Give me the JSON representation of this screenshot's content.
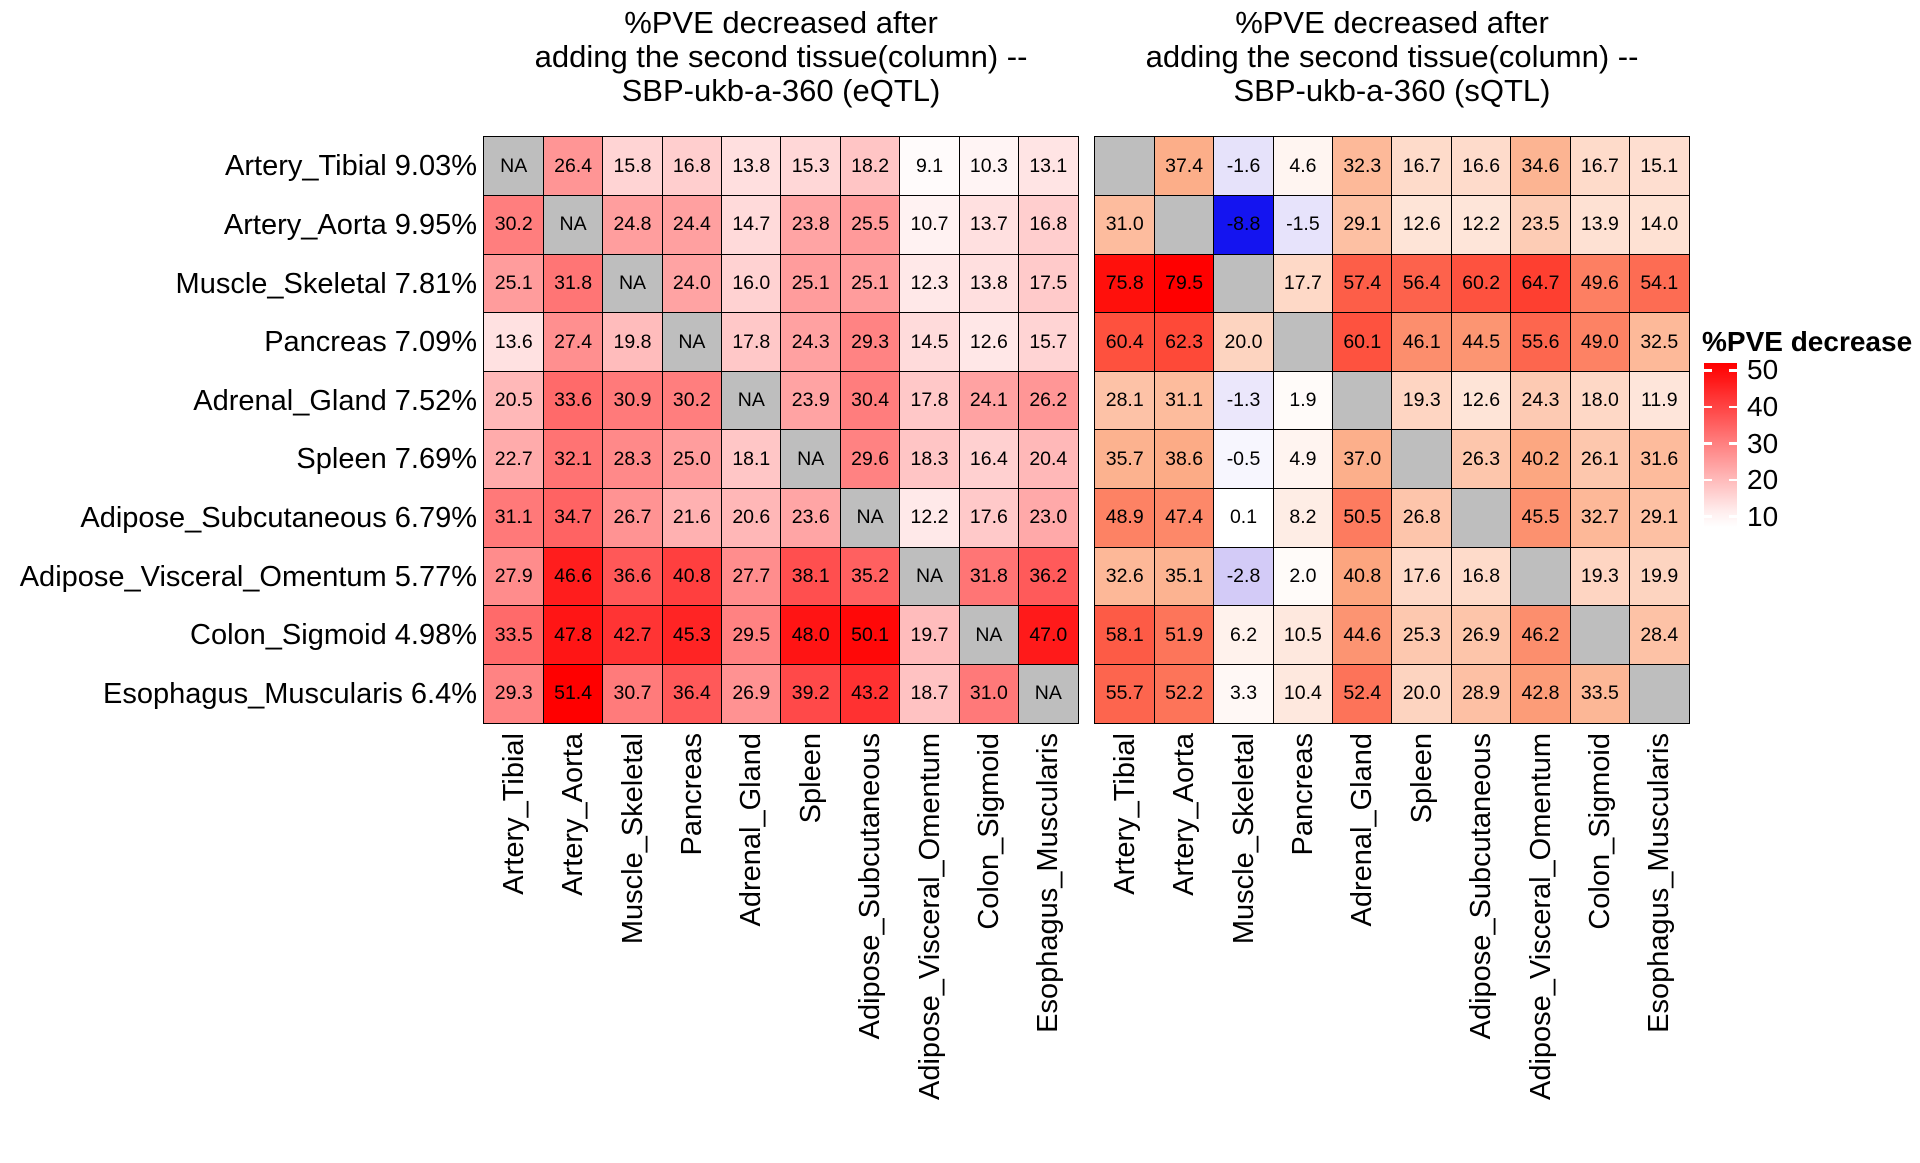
{
  "chart_data": [
    {
      "type": "heatmap",
      "name": "eqtl-heatmap",
      "title": "%PVE decreased after\nadding the second tissue(column) --\nSBP-ukb-a-360 (eQTL)",
      "rows": [
        "Artery_Tibial 9.03%",
        "Artery_Aorta 9.95%",
        "Muscle_Skeletal 7.81%",
        "Pancreas 7.09%",
        "Adrenal_Gland 7.52%",
        "Spleen 7.69%",
        "Adipose_Subcutaneous 6.79%",
        "Adipose_Visceral_Omentum 5.77%",
        "Colon_Sigmoid 4.98%",
        "Esophagus_Muscularis 6.4%"
      ],
      "columns": [
        "Artery_Tibial",
        "Artery_Aorta",
        "Muscle_Skeletal",
        "Pancreas",
        "Adrenal_Gland",
        "Spleen",
        "Adipose_Subcutaneous",
        "Adipose_Visceral_Omentum",
        "Colon_Sigmoid",
        "Esophagus_Muscularis"
      ],
      "na_label": "NA",
      "colormap": "white-red",
      "value_range": [
        9.1,
        51.4
      ],
      "values": [
        [
          null,
          26.4,
          15.8,
          16.8,
          13.8,
          15.3,
          18.2,
          9.1,
          10.3,
          13.1
        ],
        [
          30.2,
          null,
          24.8,
          24.4,
          14.7,
          23.8,
          25.5,
          10.7,
          13.7,
          16.8
        ],
        [
          25.1,
          31.8,
          null,
          24.0,
          16.0,
          25.1,
          25.1,
          12.3,
          13.8,
          17.5
        ],
        [
          13.6,
          27.4,
          19.8,
          null,
          17.8,
          24.3,
          29.3,
          14.5,
          12.6,
          15.7
        ],
        [
          20.5,
          33.6,
          30.9,
          30.2,
          null,
          23.9,
          30.4,
          17.8,
          24.1,
          26.2
        ],
        [
          22.7,
          32.1,
          28.3,
          25.0,
          18.1,
          null,
          29.6,
          18.3,
          16.4,
          20.4
        ],
        [
          31.1,
          34.7,
          26.7,
          21.6,
          20.6,
          23.6,
          null,
          12.2,
          17.6,
          23.0
        ],
        [
          27.9,
          46.6,
          36.6,
          40.8,
          27.7,
          38.1,
          35.2,
          null,
          31.8,
          36.2
        ],
        [
          33.5,
          47.8,
          42.7,
          45.3,
          29.5,
          48.0,
          50.1,
          19.7,
          null,
          47.0
        ],
        [
          29.3,
          51.4,
          30.7,
          36.4,
          26.9,
          39.2,
          43.2,
          18.7,
          31.0,
          null
        ]
      ]
    },
    {
      "type": "heatmap",
      "name": "sqtl-heatmap",
      "title": "%PVE decreased after\nadding the second tissue(column) --\nSBP-ukb-a-360 (sQTL)",
      "rows": [
        "Artery_Tibial 9.03%",
        "Artery_Aorta 9.95%",
        "Muscle_Skeletal 7.81%",
        "Pancreas 7.09%",
        "Adrenal_Gland 7.52%",
        "Spleen 7.69%",
        "Adipose_Subcutaneous 6.79%",
        "Adipose_Visceral_Omentum 5.77%",
        "Colon_Sigmoid 4.98%",
        "Esophagus_Muscularis 6.4%"
      ],
      "columns": [
        "Artery_Tibial",
        "Artery_Aorta",
        "Muscle_Skeletal",
        "Pancreas",
        "Adrenal_Gland",
        "Spleen",
        "Adipose_Subcutaneous",
        "Adipose_Visceral_Omentum",
        "Colon_Sigmoid",
        "Esophagus_Muscularis"
      ],
      "na_label": "",
      "colormap": "blue-white-red",
      "value_range": [
        -8.8,
        79.5
      ],
      "values": [
        [
          null,
          37.4,
          -1.6,
          4.6,
          32.3,
          16.7,
          16.6,
          34.6,
          16.7,
          15.1
        ],
        [
          31.0,
          null,
          -8.8,
          -1.5,
          29.1,
          12.6,
          12.2,
          23.5,
          13.9,
          14.0
        ],
        [
          75.8,
          79.5,
          null,
          17.7,
          57.4,
          56.4,
          60.2,
          64.7,
          49.6,
          54.1
        ],
        [
          60.4,
          62.3,
          20.0,
          null,
          60.1,
          46.1,
          44.5,
          55.6,
          49.0,
          32.5
        ],
        [
          28.1,
          31.1,
          -1.3,
          1.9,
          null,
          19.3,
          12.6,
          24.3,
          18.0,
          11.9
        ],
        [
          35.7,
          38.6,
          -0.5,
          4.9,
          37.0,
          null,
          26.3,
          40.2,
          26.1,
          31.6
        ],
        [
          48.9,
          47.4,
          0.1,
          8.2,
          50.5,
          26.8,
          null,
          45.5,
          32.7,
          29.1
        ],
        [
          32.6,
          35.1,
          -2.8,
          2.0,
          40.8,
          17.6,
          16.8,
          null,
          19.3,
          19.9
        ],
        [
          58.1,
          51.9,
          6.2,
          10.5,
          44.6,
          25.3,
          26.9,
          46.2,
          null,
          28.4
        ],
        [
          55.7,
          52.2,
          3.3,
          10.4,
          52.4,
          20.0,
          28.9,
          42.8,
          33.5,
          null
        ]
      ]
    }
  ],
  "legend": {
    "title": "%PVE decrease",
    "ticks": [
      50,
      40,
      30,
      20,
      10
    ],
    "top_value": 52,
    "bottom_value": 7.2
  },
  "colors": {
    "na_cell": "#bebebe",
    "cell_border": "#000000",
    "max_red": "#ff0000",
    "min_blue": "#1414f0",
    "background": "#ffffff"
  }
}
